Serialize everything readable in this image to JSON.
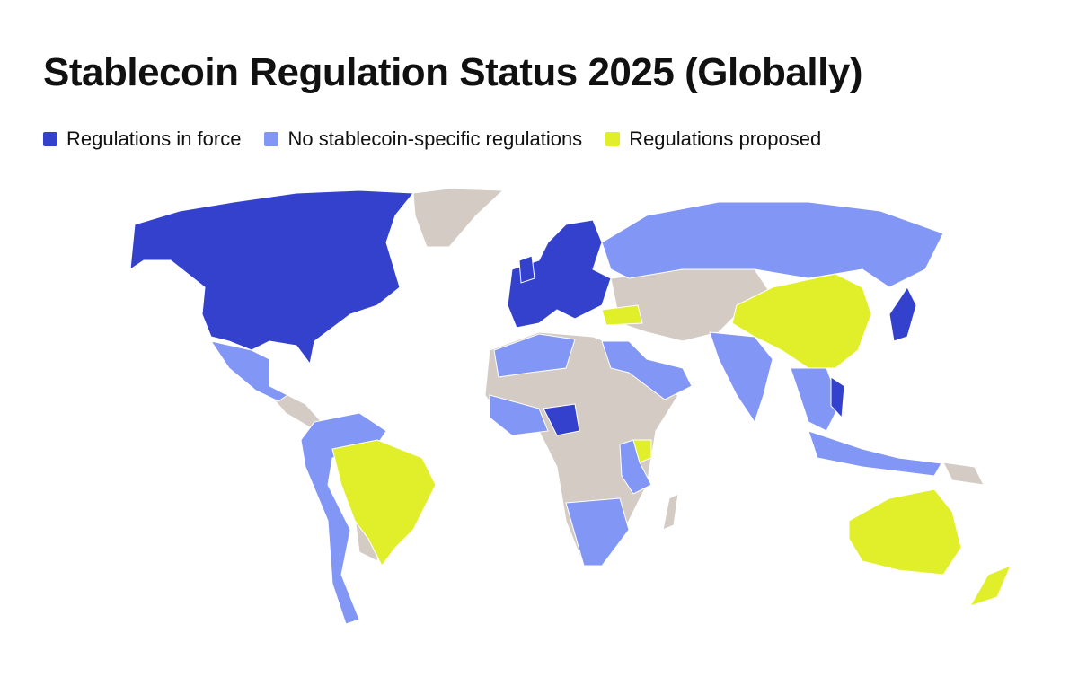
{
  "title": "Stablecoin Regulation Status 2025 (Globally)",
  "legend": [
    {
      "label": "Regulations in force",
      "color": "#3341cc"
    },
    {
      "label": "No stablecoin-specific regulations",
      "color": "#8296f5"
    },
    {
      "label": "Regulations proposed",
      "color": "#e0ef2a"
    }
  ]
}
